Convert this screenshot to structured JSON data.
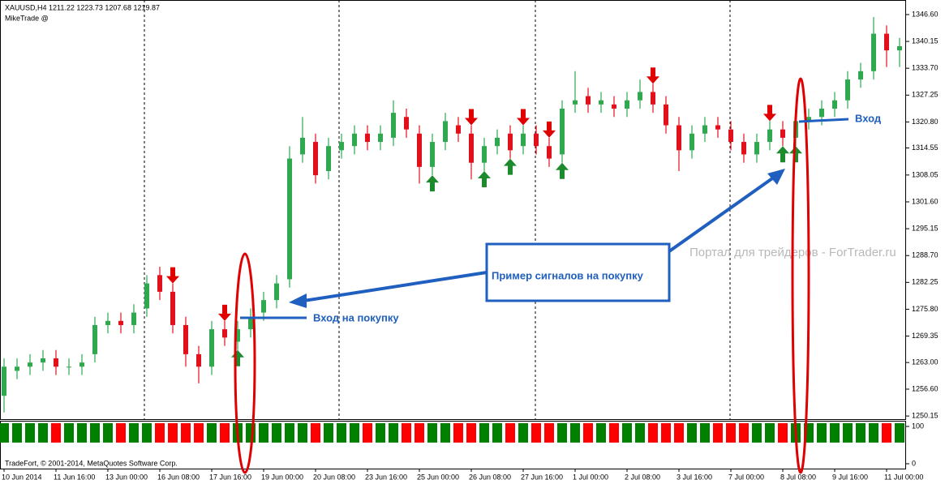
{
  "chart_data": {
    "type": "candlestick",
    "header": "XAUUSD,H4  1211.22 1223.73 1207.68 1219.87",
    "indicator_name": "MikeTrade  @",
    "copyright": "TradeFort, © 2001-2014, MetaQuotes Software Corp.",
    "watermark": "Портал для трейдеров - ForTrader.ru",
    "annotations": [
      "Пример сигналов на покупку",
      "Вход на покупку",
      "Вход"
    ],
    "categories": [
      "10 Jun 2014",
      null,
      null,
      null,
      "11 Jun 16:00",
      null,
      null,
      null,
      "13 Jun 00:00",
      null,
      null,
      null,
      "16 Jun 08:00",
      null,
      null,
      null,
      "17 Jun 16:00",
      null,
      null,
      null,
      "19 Jun 00:00",
      null,
      null,
      null,
      "20 Jun 08:00",
      null,
      null,
      null,
      "23 Jun 16:00",
      null,
      null,
      null,
      "25 Jun 00:00",
      null,
      null,
      null,
      "26 Jun 08:00",
      null,
      null,
      null,
      "27 Jun 16:00",
      null,
      null,
      null,
      "1 Jul 00:00",
      null,
      null,
      null,
      "2 Jul 08:00",
      null,
      null,
      null,
      "3 Jul 16:00",
      null,
      null,
      null,
      "7 Jul 00:00",
      null,
      null,
      null,
      "8 Jul 08:00",
      null,
      null,
      null,
      "9 Jul 16:00",
      null,
      null,
      null,
      "11 Jul 00:00",
      null
    ],
    "open": [
      1255,
      1261,
      1262,
      1263,
      1264,
      1262,
      1262,
      1265,
      1272,
      1273,
      1272,
      1276,
      1284,
      1280,
      1272,
      1265,
      1262,
      1271,
      1268,
      1271,
      1275,
      1278,
      1283,
      1313,
      1316,
      1309,
      1314,
      1315,
      1318,
      1316,
      1317,
      1322,
      1318,
      1310,
      1316,
      1320,
      1318,
      1311,
      1315,
      1318,
      1315,
      1318,
      1315,
      1313,
      1325,
      1327,
      1325,
      1325,
      1324,
      1326,
      1328,
      1325,
      1320,
      1314,
      1318,
      1320,
      1319,
      1316,
      1313,
      1316,
      1319,
      1317,
      1321,
      1322,
      1324,
      1326,
      1331,
      1333,
      1342,
      1338
    ],
    "high": [
      1264,
      1264,
      1265,
      1266,
      1266,
      1264,
      1265,
      1274,
      1275,
      1275,
      1277,
      1284,
      1286,
      1282,
      1274,
      1267,
      1273,
      1273,
      1273,
      1276,
      1280,
      1284,
      1315,
      1322,
      1318,
      1317,
      1318,
      1320,
      1320,
      1320,
      1326,
      1324,
      1320,
      1318,
      1323,
      1322,
      1320,
      1317,
      1319,
      1320,
      1320,
      1320,
      1317,
      1326,
      1333,
      1329,
      1328,
      1327,
      1328,
      1331,
      1330,
      1327,
      1322,
      1320,
      1322,
      1322,
      1321,
      1318,
      1318,
      1321,
      1321,
      1323,
      1324,
      1326,
      1328,
      1333,
      1335,
      1346,
      1344,
      1341
    ],
    "low": [
      1251,
      1259,
      1260,
      1261,
      1260,
      1260,
      1260,
      1263,
      1270,
      1270,
      1270,
      1274,
      1278,
      1270,
      1262,
      1258,
      1260,
      1267,
      1266,
      1269,
      1273,
      1276,
      1281,
      1311,
      1306,
      1307,
      1312,
      1313,
      1314,
      1314,
      1315,
      1317,
      1306,
      1308,
      1314,
      1316,
      1307,
      1309,
      1313,
      1312,
      1313,
      1313,
      1310,
      1311,
      1323,
      1323,
      1323,
      1322,
      1322,
      1324,
      1323,
      1318,
      1309,
      1312,
      1316,
      1317,
      1314,
      1311,
      1311,
      1314,
      1315,
      1315,
      1319,
      1320,
      1322,
      1324,
      1329,
      1331,
      1334,
      1334
    ],
    "close": [
      1262,
      1262,
      1263,
      1264,
      1262,
      1262,
      1263,
      1272,
      1273,
      1272,
      1275,
      1282,
      1280,
      1272,
      1265,
      1262,
      1271,
      1269,
      1271,
      1274,
      1278,
      1282,
      1312,
      1317,
      1308,
      1315,
      1316,
      1318,
      1316,
      1318,
      1323,
      1319,
      1310,
      1316,
      1321,
      1318,
      1311,
      1315,
      1317,
      1314,
      1318,
      1315,
      1312,
      1324,
      1326,
      1325,
      1326,
      1324,
      1326,
      1328,
      1325,
      1320,
      1314,
      1318,
      1320,
      1319,
      1316,
      1313,
      1316,
      1319,
      1317,
      1321,
      1322,
      1324,
      1326,
      1331,
      1333,
      1342,
      1338,
      1339
    ],
    "up_color": "#2fa84f",
    "down_color": "#e3101c",
    "buy_signals": [
      18,
      33,
      37,
      39,
      43,
      60,
      61
    ],
    "sell_signals": [
      13,
      17,
      36,
      40,
      42,
      50,
      59
    ],
    "ylim": [
      1249.2,
      1350.1
    ],
    "yticks": [
      {
        "value": 1346.6,
        "label": "1346.60"
      },
      {
        "value": 1340.15,
        "label": "1340.15"
      },
      {
        "value": 1333.7,
        "label": "1333.70"
      },
      {
        "value": 1327.25,
        "label": "1327.25"
      },
      {
        "value": 1320.8,
        "label": "1320.80"
      },
      {
        "value": 1314.55,
        "label": "1314.55"
      },
      {
        "value": 1308.05,
        "label": "1308.05"
      },
      {
        "value": 1301.6,
        "label": "1301.60"
      },
      {
        "value": 1295.15,
        "label": "1295.15"
      },
      {
        "value": 1288.7,
        "label": "1288.70"
      },
      {
        "value": 1282.25,
        "label": "1282.25"
      },
      {
        "value": 1275.8,
        "label": "1275.80"
      },
      {
        "value": 1269.35,
        "label": "1269.35"
      },
      {
        "value": 1263,
        "label": "1263.00"
      },
      {
        "value": 1256.6,
        "label": "1256.60"
      },
      {
        "value": 1250.15,
        "label": "1250.15"
      }
    ],
    "indicator": {
      "ylim": [
        0,
        100
      ],
      "yticks": [
        0,
        100
      ],
      "up_color": "#008000",
      "down_color": "#ff0000",
      "values": [
        100,
        100,
        100,
        100,
        100,
        100,
        100,
        100,
        100,
        100,
        100,
        100,
        100,
        100,
        100,
        100,
        100,
        100,
        100,
        100,
        100,
        100,
        100,
        100,
        100,
        100,
        100,
        100,
        100,
        100,
        100,
        100,
        100,
        100,
        100,
        100,
        100,
        100,
        100,
        100,
        100,
        100,
        100,
        100,
        100,
        100,
        100,
        100,
        100,
        100,
        100,
        100,
        100,
        100,
        100,
        100,
        100,
        100,
        100,
        100,
        100,
        100,
        100,
        100,
        100,
        100,
        100,
        100,
        100,
        100
      ],
      "bull": [
        true,
        true,
        true,
        true,
        false,
        true,
        true,
        true,
        true,
        false,
        true,
        true,
        false,
        false,
        false,
        false,
        true,
        false,
        true,
        true,
        true,
        true,
        true,
        true,
        false,
        true,
        true,
        true,
        false,
        true,
        true,
        false,
        false,
        true,
        true,
        false,
        false,
        true,
        true,
        false,
        true,
        false,
        false,
        true,
        true,
        false,
        true,
        false,
        true,
        true,
        false,
        false,
        false,
        true,
        true,
        false,
        false,
        false,
        true,
        true,
        false,
        true,
        true,
        true,
        true,
        true,
        true,
        true,
        false,
        true
      ]
    }
  }
}
